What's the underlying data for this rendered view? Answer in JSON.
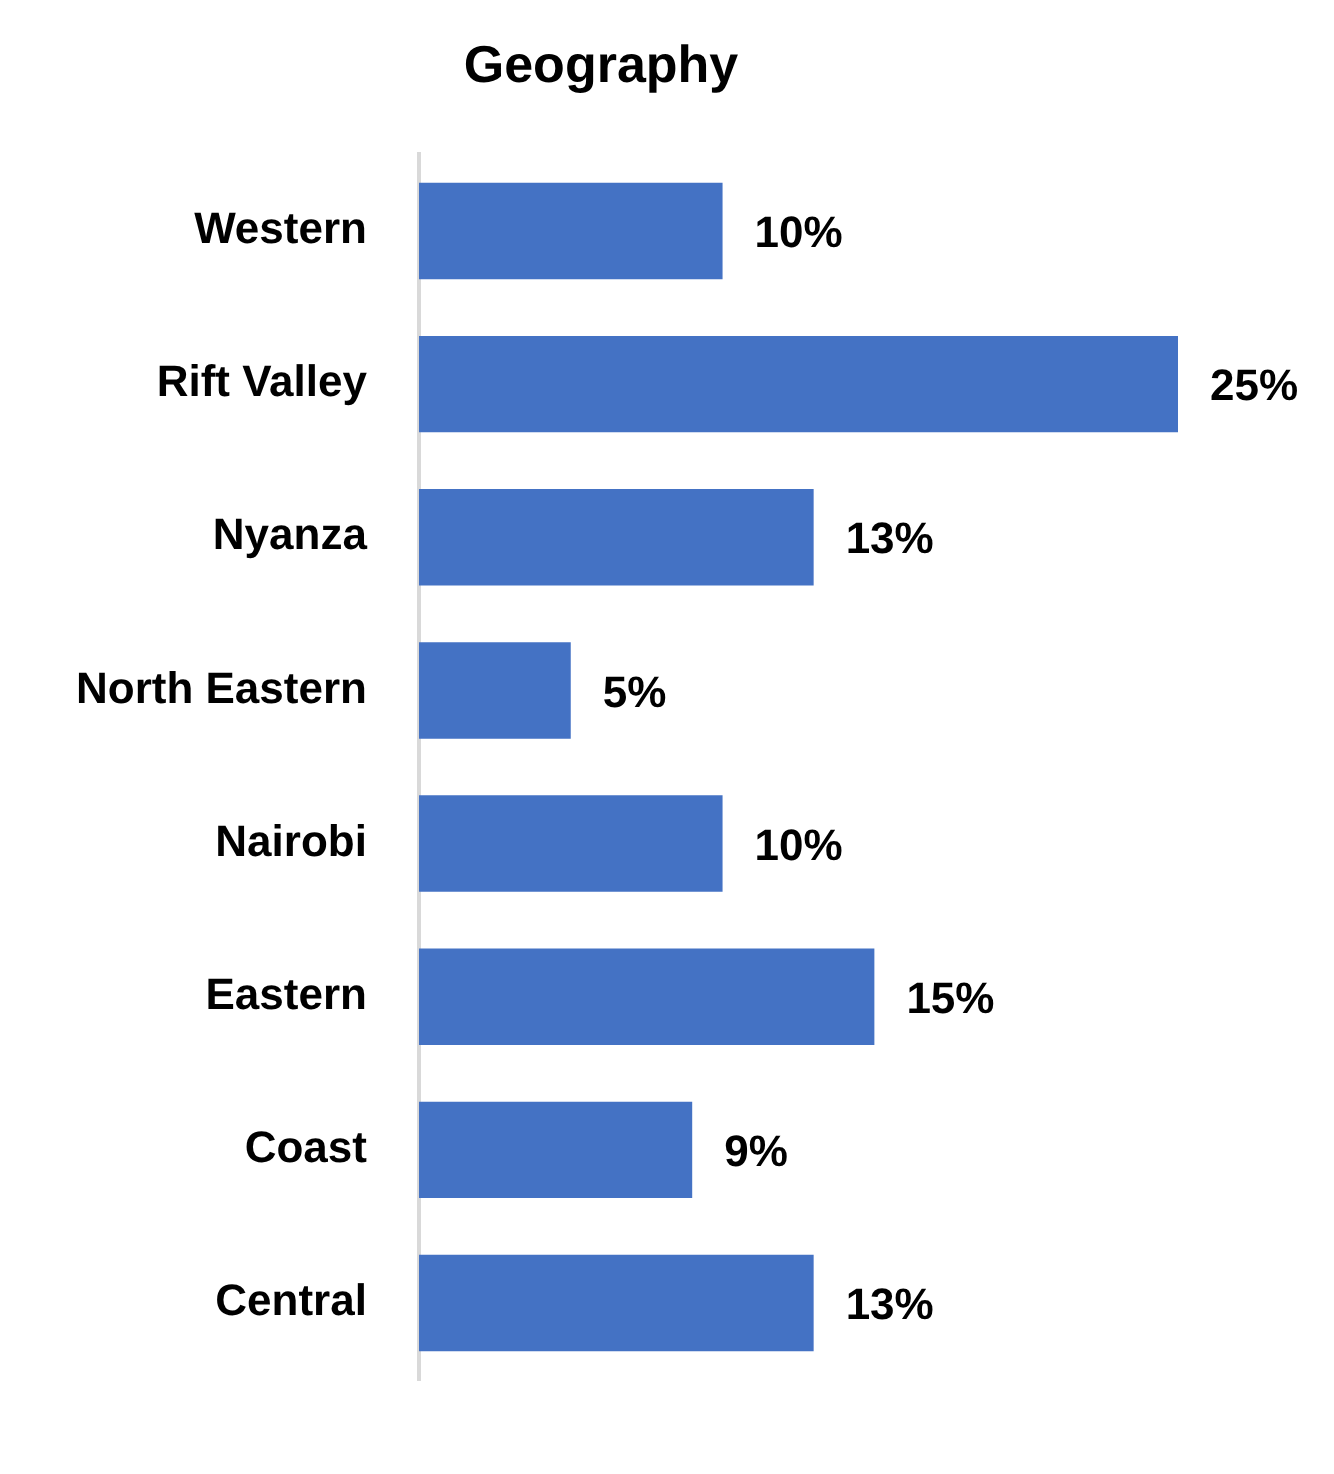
{
  "chart_data": {
    "type": "bar",
    "title": "Geography",
    "orientation": "horizontal",
    "categories": [
      "Western",
      "Rift Valley",
      "Nyanza",
      "North Eastern",
      "Nairobi",
      "Eastern",
      "Coast",
      "Central"
    ],
    "values": [
      10,
      25,
      13,
      5,
      10,
      15,
      9,
      13
    ],
    "value_labels": [
      "10%",
      "25%",
      "13%",
      "5%",
      "10%",
      "15%",
      "9%",
      "13%"
    ],
    "color": "#4472c4",
    "grid": false,
    "legend": false,
    "tick_labels": "y"
  }
}
